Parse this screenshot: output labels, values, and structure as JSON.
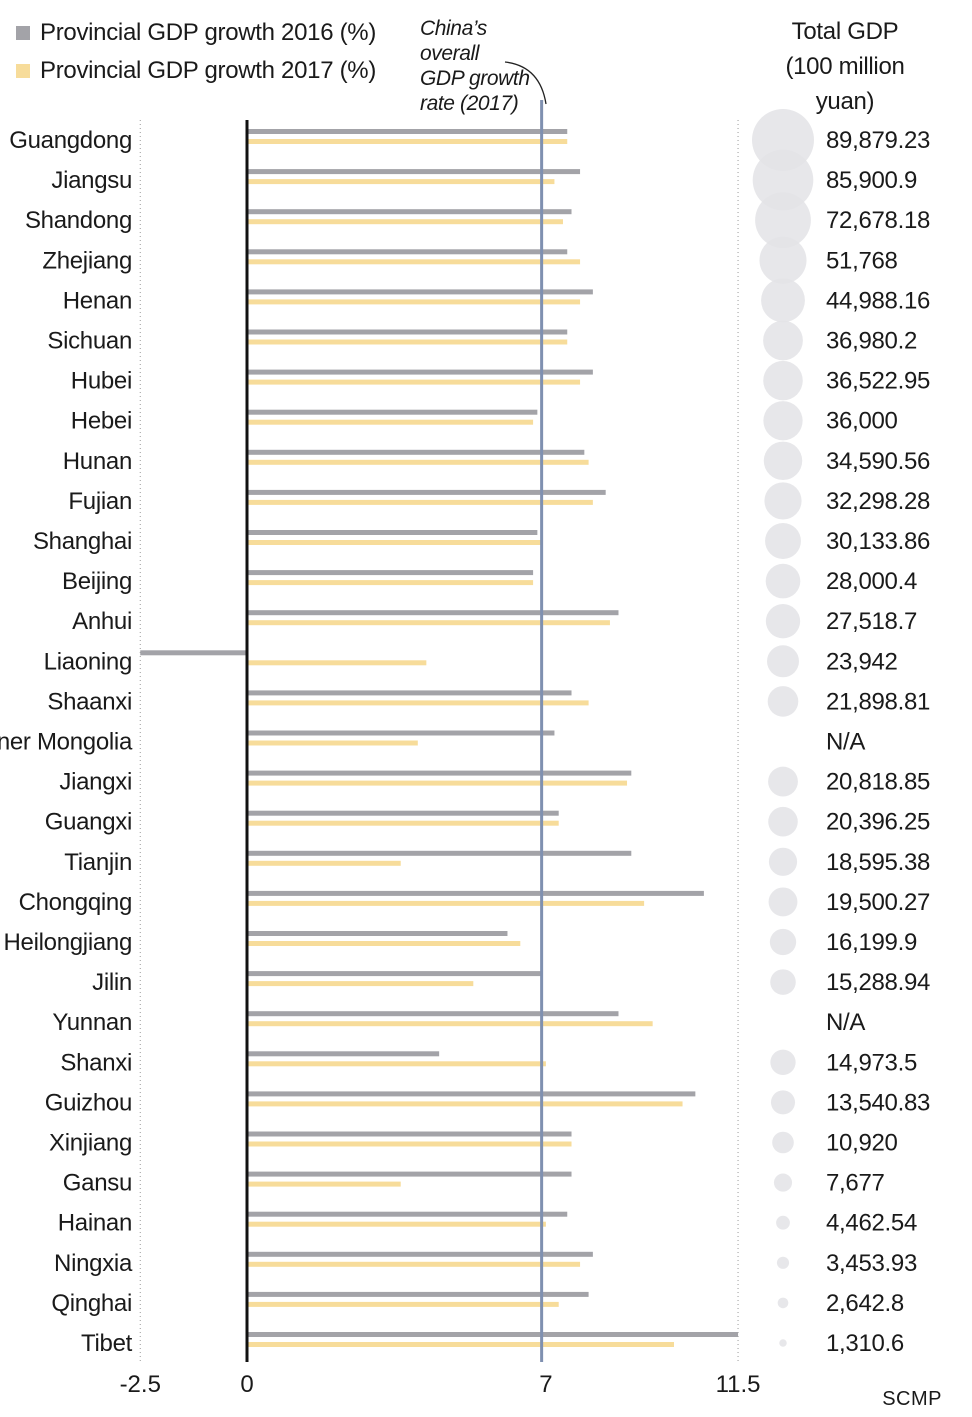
{
  "chart_data": {
    "type": "bar",
    "orientation": "horizontal",
    "legend": {
      "items": [
        {
          "label": "Provincial GDP growth 2016 (%)",
          "color": "#a3a3a8"
        },
        {
          "label": "Provincial GDP growth 2017 (%)",
          "color": "#f7dc9a"
        }
      ],
      "position": "top-left"
    },
    "annotation": {
      "lines": [
        "China’s",
        "overall",
        "GDP growth",
        "rate (2017)"
      ],
      "value": 6.9
    },
    "right_column": {
      "title_lines": [
        "Total GDP",
        "(100 million",
        "yuan)"
      ],
      "bubble_color": "#e3e3e6"
    },
    "axis": {
      "range": [
        -2.5,
        11.5
      ],
      "ticks": [
        -2.5,
        0,
        7,
        11.5
      ],
      "tick_labels": [
        "-2.5",
        "0",
        "7",
        "11.5"
      ]
    },
    "provinces": [
      {
        "name": "Guangdong",
        "g2016": 7.5,
        "g2017": 7.5,
        "gdp": 89879.23,
        "gdp_label": "89,879.23"
      },
      {
        "name": "Jiangsu",
        "g2016": 7.8,
        "g2017": 7.2,
        "gdp": 85900.9,
        "gdp_label": "85,900.9"
      },
      {
        "name": "Shandong",
        "g2016": 7.6,
        "g2017": 7.4,
        "gdp": 72678.18,
        "gdp_label": "72,678.18"
      },
      {
        "name": "Zhejiang",
        "g2016": 7.5,
        "g2017": 7.8,
        "gdp": 51768,
        "gdp_label": "51,768"
      },
      {
        "name": "Henan",
        "g2016": 8.1,
        "g2017": 7.8,
        "gdp": 44988.16,
        "gdp_label": "44,988.16"
      },
      {
        "name": "Sichuan",
        "g2016": 7.5,
        "g2017": 7.5,
        "gdp": 36980.2,
        "gdp_label": "36,980.2"
      },
      {
        "name": "Hubei",
        "g2016": 8.1,
        "g2017": 7.8,
        "gdp": 36522.95,
        "gdp_label": "36,522.95"
      },
      {
        "name": "Hebei",
        "g2016": 6.8,
        "g2017": 6.7,
        "gdp": 36000,
        "gdp_label": "36,000"
      },
      {
        "name": "Hunan",
        "g2016": 7.9,
        "g2017": 8.0,
        "gdp": 34590.56,
        "gdp_label": "34,590.56"
      },
      {
        "name": "Fujian",
        "g2016": 8.4,
        "g2017": 8.1,
        "gdp": 32298.28,
        "gdp_label": "32,298.28"
      },
      {
        "name": "Shanghai",
        "g2016": 6.8,
        "g2017": 6.9,
        "gdp": 30133.86,
        "gdp_label": "30,133.86"
      },
      {
        "name": "Beijing",
        "g2016": 6.7,
        "g2017": 6.7,
        "gdp": 28000.4,
        "gdp_label": "28,000.4"
      },
      {
        "name": "Anhui",
        "g2016": 8.7,
        "g2017": 8.5,
        "gdp": 27518.7,
        "gdp_label": "27,518.7"
      },
      {
        "name": "Liaoning",
        "g2016": -2.5,
        "g2017": 4.2,
        "gdp": 23942,
        "gdp_label": "23,942"
      },
      {
        "name": "Shaanxi",
        "g2016": 7.6,
        "g2017": 8.0,
        "gdp": 21898.81,
        "gdp_label": "21,898.81"
      },
      {
        "name": "Inner Mongolia",
        "g2016": 7.2,
        "g2017": 4.0,
        "gdp": null,
        "gdp_label": "N/A"
      },
      {
        "name": "Jiangxi",
        "g2016": 9.0,
        "g2017": 8.9,
        "gdp": 20818.85,
        "gdp_label": "20,818.85"
      },
      {
        "name": "Guangxi",
        "g2016": 7.3,
        "g2017": 7.3,
        "gdp": 20396.25,
        "gdp_label": "20,396.25"
      },
      {
        "name": "Tianjin",
        "g2016": 9.0,
        "g2017": 3.6,
        "gdp": 18595.38,
        "gdp_label": "18,595.38"
      },
      {
        "name": "Chongqing",
        "g2016": 10.7,
        "g2017": 9.3,
        "gdp": 19500.27,
        "gdp_label": "19,500.27"
      },
      {
        "name": "Heilongjiang",
        "g2016": 6.1,
        "g2017": 6.4,
        "gdp": 16199.9,
        "gdp_label": "16,199.9"
      },
      {
        "name": "Jilin",
        "g2016": 6.9,
        "g2017": 5.3,
        "gdp": 15288.94,
        "gdp_label": "15,288.94"
      },
      {
        "name": "Yunnan",
        "g2016": 8.7,
        "g2017": 9.5,
        "gdp": null,
        "gdp_label": "N/A"
      },
      {
        "name": "Shanxi",
        "g2016": 4.5,
        "g2017": 7.0,
        "gdp": 14973.5,
        "gdp_label": "14,973.5"
      },
      {
        "name": "Guizhou",
        "g2016": 10.5,
        "g2017": 10.2,
        "gdp": 13540.83,
        "gdp_label": "13,540.83"
      },
      {
        "name": "Xinjiang",
        "g2016": 7.6,
        "g2017": 7.6,
        "gdp": 10920,
        "gdp_label": "10,920"
      },
      {
        "name": "Gansu",
        "g2016": 7.6,
        "g2017": 3.6,
        "gdp": 7677,
        "gdp_label": "7,677"
      },
      {
        "name": "Hainan",
        "g2016": 7.5,
        "g2017": 7.0,
        "gdp": 4462.54,
        "gdp_label": "4,462.54"
      },
      {
        "name": "Ningxia",
        "g2016": 8.1,
        "g2017": 7.8,
        "gdp": 3453.93,
        "gdp_label": "3,453.93"
      },
      {
        "name": "Qinghai",
        "g2016": 8.0,
        "g2017": 7.3,
        "gdp": 2642.8,
        "gdp_label": "2,642.8"
      },
      {
        "name": "Tibet",
        "g2016": 11.5,
        "g2017": 10.0,
        "gdp": 1310.6,
        "gdp_label": "1,310.6"
      }
    ],
    "source": "SCMP"
  }
}
